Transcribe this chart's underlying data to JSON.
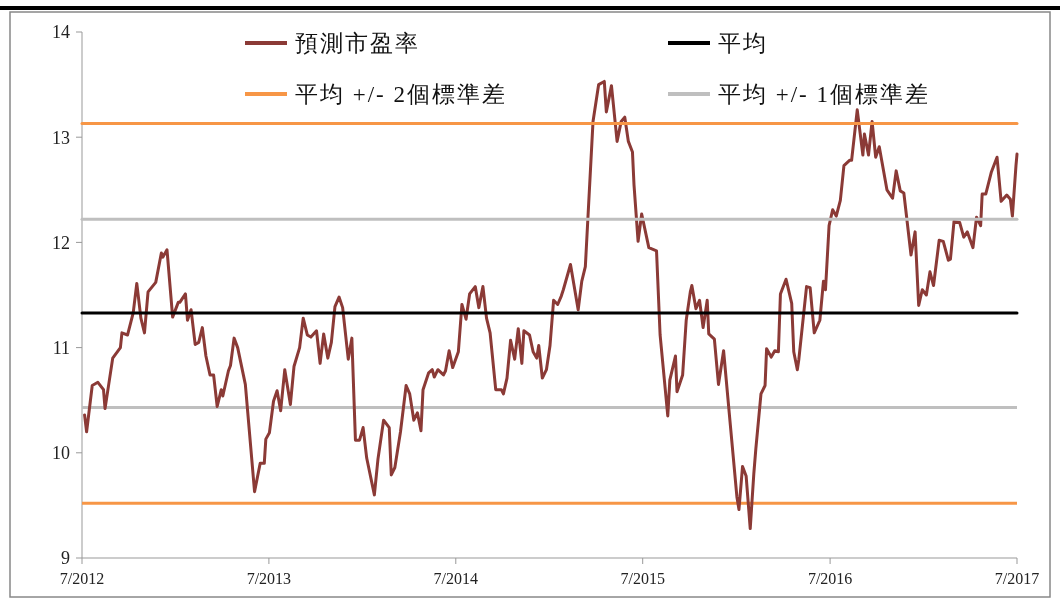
{
  "chart_data": {
    "type": "line",
    "xlim": [
      "2012-07-01",
      "2017-07-01"
    ],
    "xticks": [
      {
        "value": "2012-07-01",
        "label": "7/2012"
      },
      {
        "value": "2013-07-01",
        "label": "7/2013"
      },
      {
        "value": "2014-07-01",
        "label": "7/2014"
      },
      {
        "value": "2015-07-01",
        "label": "7/2015"
      },
      {
        "value": "2016-07-01",
        "label": "7/2016"
      },
      {
        "value": "2017-07-01",
        "label": "7/2017"
      }
    ],
    "ylim": [
      9,
      14
    ],
    "yticks": [
      9,
      10,
      11,
      12,
      13,
      14
    ],
    "legend": "top",
    "line_style": "solid",
    "series": [
      {
        "name": "預測市盈率",
        "color": "#8b3a36",
        "x": [
          "2012-07-06",
          "2012-07-10",
          "2012-07-21",
          "2012-08-01",
          "2012-08-12",
          "2012-08-15",
          "2012-08-30",
          "2012-09-14",
          "2012-09-17",
          "2012-09-28",
          "2012-10-09",
          "2012-10-16",
          "2012-10-24",
          "2012-10-31",
          "2012-11-07",
          "2012-11-22",
          "2012-12-03",
          "2012-12-06",
          "2012-12-14",
          "2012-12-25",
          "2013-01-05",
          "2013-01-08",
          "2013-01-19",
          "2013-01-23",
          "2013-01-30",
          "2013-02-07",
          "2013-02-14",
          "2013-02-21",
          "2013-02-28",
          "2013-03-08",
          "2013-03-15",
          "2013-03-22",
          "2013-03-30",
          "2013-04-02",
          "2013-04-13",
          "2013-04-17",
          "2013-04-24",
          "2013-05-01",
          "2013-05-16",
          "2013-06-03",
          "2013-06-14",
          "2013-06-22",
          "2013-06-25",
          "2013-07-02",
          "2013-07-10",
          "2013-07-17",
          "2013-07-24",
          "2013-08-01",
          "2013-08-12",
          "2013-08-19",
          "2013-08-30",
          "2013-09-06",
          "2013-09-14",
          "2013-09-21",
          "2013-10-02",
          "2013-10-09",
          "2013-10-16",
          "2013-10-24",
          "2013-10-31",
          "2013-11-07",
          "2013-11-15",
          "2013-11-22",
          "2013-12-03",
          "2013-12-10",
          "2013-12-17",
          "2013-12-25",
          "2014-01-01",
          "2014-01-08",
          "2014-01-23",
          "2014-01-30",
          "2014-02-10",
          "2014-02-21",
          "2014-02-25",
          "2014-03-04",
          "2014-03-15",
          "2014-03-26",
          "2014-04-02",
          "2014-04-10",
          "2014-04-17",
          "2014-04-24",
          "2014-04-28",
          "2014-05-09",
          "2014-05-16",
          "2014-05-20",
          "2014-05-27",
          "2014-06-07",
          "2014-06-11",
          "2014-06-18",
          "2014-06-25",
          "2014-07-06",
          "2014-07-13",
          "2014-07-21",
          "2014-07-28",
          "2014-08-08",
          "2014-08-15",
          "2014-08-23",
          "2014-08-30",
          "2014-09-06",
          "2014-09-17",
          "2014-09-28",
          "2014-10-02",
          "2014-10-09",
          "2014-10-16",
          "2014-10-24",
          "2014-10-31",
          "2014-11-07",
          "2014-11-11",
          "2014-11-22",
          "2014-11-29",
          "2014-12-06",
          "2014-12-10",
          "2014-12-17",
          "2014-12-25",
          "2015-01-01",
          "2015-01-08",
          "2015-01-16",
          "2015-01-23",
          "2015-01-27",
          "2015-02-10",
          "2015-02-25",
          "2015-03-04",
          "2015-03-11",
          "2015-03-26",
          "2015-04-06",
          "2015-04-17",
          "2015-04-21",
          "2015-05-01",
          "2015-05-12",
          "2015-05-20",
          "2015-05-27",
          "2015-06-03",
          "2015-06-11",
          "2015-06-14",
          "2015-06-22",
          "2015-06-29",
          "2015-07-13",
          "2015-07-28",
          "2015-08-04",
          "2015-08-19",
          "2015-08-23",
          "2015-09-03",
          "2015-09-06",
          "2015-09-17",
          "2015-09-24",
          "2015-10-02",
          "2015-10-05",
          "2015-10-13",
          "2015-10-20",
          "2015-10-27",
          "2015-11-04",
          "2015-11-07",
          "2015-11-18",
          "2015-11-26",
          "2015-12-06",
          "2015-12-17",
          "2016-01-01",
          "2016-01-05",
          "2016-01-12",
          "2016-01-19",
          "2016-01-27",
          "2016-02-03",
          "2016-02-07",
          "2016-02-17",
          "2016-02-25",
          "2016-02-28",
          "2016-03-08",
          "2016-03-15",
          "2016-03-22",
          "2016-03-26",
          "2016-04-06",
          "2016-04-17",
          "2016-04-21",
          "2016-04-28",
          "2016-05-01",
          "2016-05-16",
          "2016-05-23",
          "2016-05-31",
          "2016-06-11",
          "2016-06-18",
          "2016-06-22",
          "2016-06-29",
          "2016-07-06",
          "2016-07-13",
          "2016-07-21",
          "2016-07-28",
          "2016-08-08",
          "2016-08-12",
          "2016-08-23",
          "2016-09-03",
          "2016-09-06",
          "2016-09-14",
          "2016-09-21",
          "2016-09-28",
          "2016-10-05",
          "2016-10-20",
          "2016-10-31",
          "2016-11-07",
          "2016-11-15",
          "2016-11-22",
          "2016-12-06",
          "2016-12-14",
          "2016-12-21",
          "2016-12-28",
          "2017-01-05",
          "2017-01-12",
          "2017-01-19",
          "2017-01-30",
          "2017-02-07",
          "2017-02-17",
          "2017-02-21",
          "2017-02-28",
          "2017-03-11",
          "2017-03-19",
          "2017-03-26",
          "2017-04-06",
          "2017-04-13",
          "2017-04-21",
          "2017-04-24",
          "2017-05-01",
          "2017-05-12",
          "2017-05-23",
          "2017-05-31",
          "2017-06-11",
          "2017-06-18",
          "2017-06-22",
          "2017-06-29",
          "2017-07-01"
        ],
        "values": [
          10.36,
          10.2,
          10.64,
          10.67,
          10.6,
          10.42,
          10.9,
          11.0,
          11.14,
          11.12,
          11.33,
          11.61,
          11.28,
          11.14,
          11.53,
          11.62,
          11.9,
          11.86,
          11.93,
          11.29,
          11.43,
          11.43,
          11.51,
          11.26,
          11.36,
          11.03,
          11.05,
          11.19,
          10.92,
          10.74,
          10.74,
          10.44,
          10.6,
          10.54,
          10.78,
          10.83,
          11.09,
          11.0,
          10.65,
          9.63,
          9.9,
          9.9,
          10.13,
          10.19,
          10.49,
          10.59,
          10.4,
          10.79,
          10.46,
          10.82,
          11.0,
          11.28,
          11.12,
          11.1,
          11.16,
          10.85,
          11.13,
          10.9,
          11.05,
          11.39,
          11.48,
          11.38,
          10.89,
          11.09,
          10.12,
          10.12,
          10.24,
          9.95,
          9.6,
          9.94,
          10.31,
          10.24,
          9.79,
          9.86,
          10.2,
          10.64,
          10.56,
          10.31,
          10.38,
          10.21,
          10.6,
          10.76,
          10.79,
          10.72,
          10.79,
          10.74,
          10.78,
          10.97,
          10.81,
          10.96,
          11.41,
          11.27,
          11.51,
          11.58,
          11.38,
          11.58,
          11.28,
          11.14,
          10.6,
          10.6,
          10.56,
          10.71,
          11.07,
          10.89,
          11.18,
          10.85,
          11.16,
          11.12,
          10.96,
          10.9,
          11.02,
          10.71,
          10.79,
          11.02,
          11.45,
          11.41,
          11.49,
          11.55,
          11.79,
          11.36,
          11.63,
          11.77,
          13.15,
          13.5,
          13.53,
          13.24,
          13.49,
          12.96,
          13.15,
          13.19,
          12.96,
          12.86,
          12.55,
          12.01,
          12.27,
          11.95,
          11.92,
          11.12,
          10.35,
          10.69,
          10.92,
          10.58,
          10.74,
          11.26,
          11.53,
          11.59,
          11.37,
          11.45,
          11.19,
          11.45,
          11.13,
          11.08,
          10.65,
          10.97,
          10.38,
          9.58,
          9.46,
          9.87,
          9.78,
          9.28,
          9.8,
          10.04,
          10.56,
          10.64,
          10.99,
          10.91,
          10.97,
          10.96,
          11.51,
          11.65,
          11.42,
          10.96,
          10.79,
          10.89,
          11.58,
          11.57,
          11.14,
          11.26,
          11.63,
          11.55,
          12.16,
          12.31,
          12.25,
          12.4,
          12.73,
          12.78,
          12.78,
          13.26,
          12.83,
          13.03,
          12.83,
          13.15,
          12.81,
          12.91,
          12.5,
          12.42,
          12.68,
          12.49,
          12.47,
          11.88,
          12.1,
          11.4,
          11.55,
          11.5,
          11.72,
          11.59,
          12.02,
          12.01,
          11.83,
          11.84,
          12.2,
          12.19,
          12.05,
          12.1,
          11.95,
          12.24,
          12.16,
          12.46,
          12.46,
          12.67,
          12.81,
          12.39,
          12.45,
          12.41,
          12.25,
          12.73,
          12.84
        ]
      },
      {
        "name": "平均",
        "color": "#000000",
        "x": [
          "2012-07-01",
          "2017-07-01"
        ],
        "values": [
          11.33,
          11.33
        ]
      },
      {
        "name": "平均 +/- 2個標準差",
        "color": "#f79646",
        "x": [
          "2012-07-01",
          "2017-07-01"
        ],
        "values": [
          13.13,
          13.13
        ]
      },
      {
        "name": "平均 +/- 1個標準差",
        "color": "#bfbfbf",
        "x": [
          "2012-07-01",
          "2017-07-01"
        ],
        "values": [
          12.22,
          12.22
        ]
      }
    ],
    "ref_lines": [
      {
        "axis": "y",
        "value": 9.52,
        "color": "#f79646"
      },
      {
        "axis": "y",
        "value": 10.43,
        "color": "#bfbfbf"
      }
    ]
  }
}
